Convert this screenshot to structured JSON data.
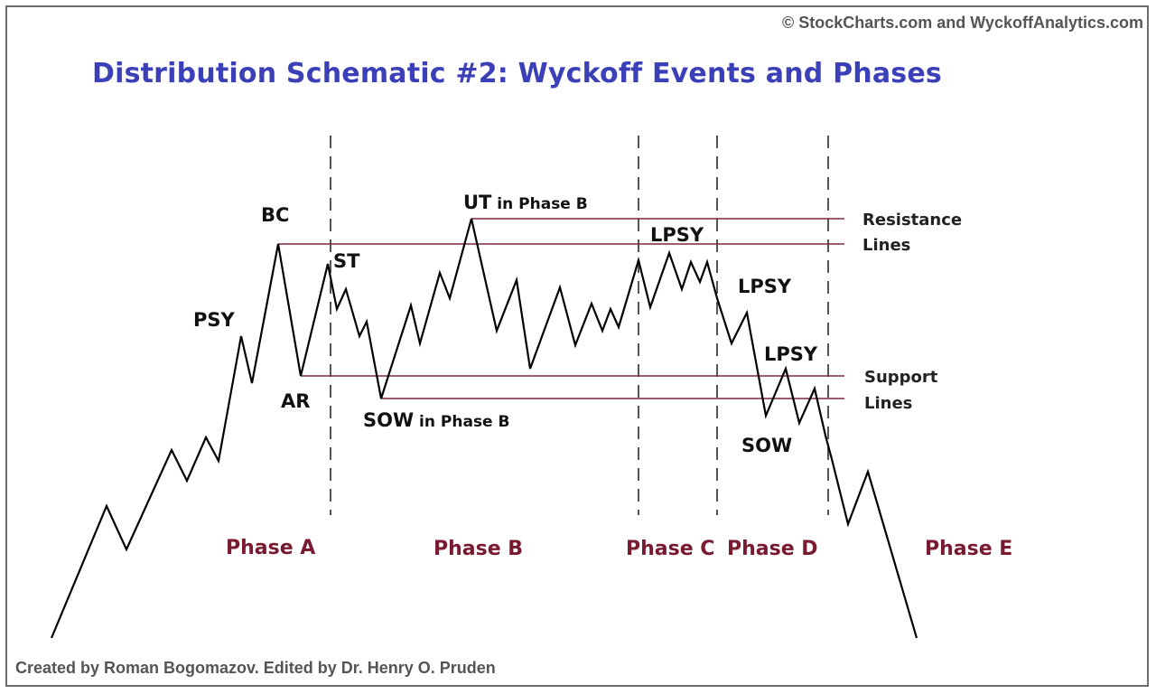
{
  "header": {
    "copyright": "© StockCharts.com and WyckoffAnalytics.com",
    "title": "Distribution Schematic #2: Wyckoff Events and Phases"
  },
  "footer": {
    "credit": "Created by Roman Bogomazov. Edited by Dr. Henry O. Pruden"
  },
  "events": {
    "psy": "PSY",
    "bc": "BC",
    "ar": "AR",
    "st": "ST",
    "ut_main": "UT",
    "ut_suffix": " in Phase B",
    "sow_b_main": "SOW",
    "sow_b_suffix": " in Phase B",
    "lpsy_1": "LPSY",
    "lpsy_2": "LPSY",
    "lpsy_3": "LPSY",
    "sow": "SOW"
  },
  "line_labels": {
    "resistance_1": "Resistance",
    "resistance_2": "Lines",
    "support_1": "Support",
    "support_2": "Lines"
  },
  "phases": {
    "a": "Phase A",
    "b": "Phase B",
    "c": "Phase C",
    "d": "Phase D",
    "e": "Phase E"
  },
  "colors": {
    "title": "#3b3fb8",
    "phase_labels": "#7a1a30",
    "level_lines": "#7a2a3a",
    "price_path": "#000000",
    "dividers": "#555555"
  }
}
